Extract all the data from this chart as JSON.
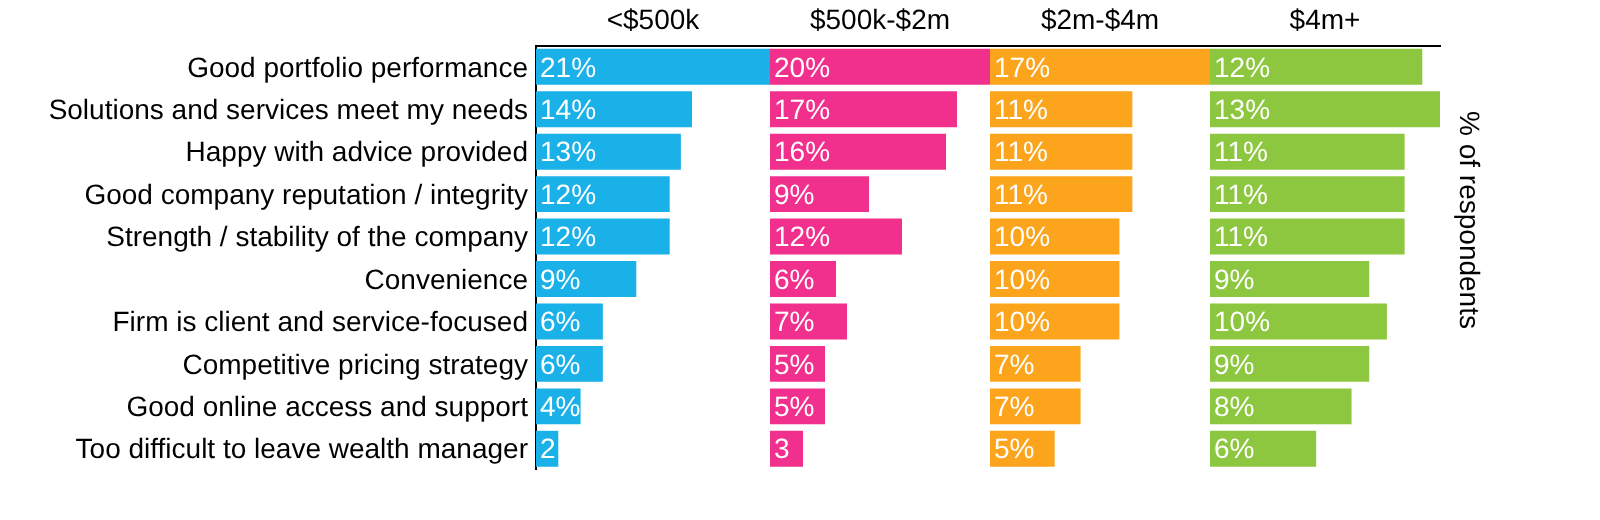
{
  "chart_data": [
    {
      "type": "bar",
      "orientation": "horizontal",
      "title": "<$500k",
      "categories": [
        "Good portfolio performance",
        "Solutions and services meet my needs",
        "Happy with advice provided",
        "Good company reputation / integrity",
        "Strength / stability of the company",
        "Convenience",
        "Firm is client and service-focused",
        "Competitive pricing strategy",
        "Good online access and support",
        "Too difficult to leave wealth manager"
      ],
      "color": "#1ab0e8",
      "values": [
        21,
        14,
        13,
        12,
        12,
        9,
        6,
        6,
        4,
        2
      ],
      "value_labels": [
        "21%",
        "14%",
        "13%",
        "12%",
        "12%",
        "9%",
        "6%",
        "6%",
        "4%",
        "2"
      ],
      "tick_labels": "y",
      "grid": false,
      "legend": false
    },
    {
      "type": "bar",
      "orientation": "horizontal",
      "title": "$500k-$2m",
      "categories": [
        null,
        null,
        null,
        null,
        null,
        null,
        null,
        null,
        null,
        null
      ],
      "color": "#f0308c",
      "values": [
        20,
        17,
        16,
        9,
        12,
        6,
        7,
        5,
        5,
        3
      ],
      "value_labels": [
        "20%",
        "17%",
        "16%",
        "9%",
        "12%",
        "6%",
        "7%",
        "5%",
        "5%",
        "3"
      ],
      "tick_labels": false,
      "grid": false,
      "legend": false
    },
    {
      "type": "bar",
      "orientation": "horizontal",
      "title": "$2m-$4m",
      "categories": [
        null,
        null,
        null,
        null,
        null,
        null,
        null,
        null,
        null,
        null
      ],
      "color": "#fca41c",
      "values": [
        17,
        11,
        11,
        11,
        10,
        10,
        10,
        7,
        7,
        5
      ],
      "value_labels": [
        "17%",
        "11%",
        "11%",
        "11%",
        "10%",
        "10%",
        "10%",
        "7%",
        "7%",
        "5%"
      ],
      "tick_labels": false,
      "grid": false,
      "legend": false
    },
    {
      "type": "bar",
      "orientation": "horizontal",
      "title": "$4m+",
      "categories": [
        null,
        null,
        null,
        null,
        null,
        null,
        null,
        null,
        null,
        null
      ],
      "color": "#8dc63f",
      "values": [
        12,
        13,
        11,
        11,
        11,
        9,
        10,
        9,
        8,
        6
      ],
      "value_labels": [
        "12%",
        "13%",
        "11%",
        "11%",
        "11%",
        "9%",
        "10%",
        "9%",
        "8%",
        "6%"
      ],
      "tick_labels": false,
      "grid": false,
      "legend": false,
      "annotations": [
        "% of respondents"
      ]
    }
  ]
}
